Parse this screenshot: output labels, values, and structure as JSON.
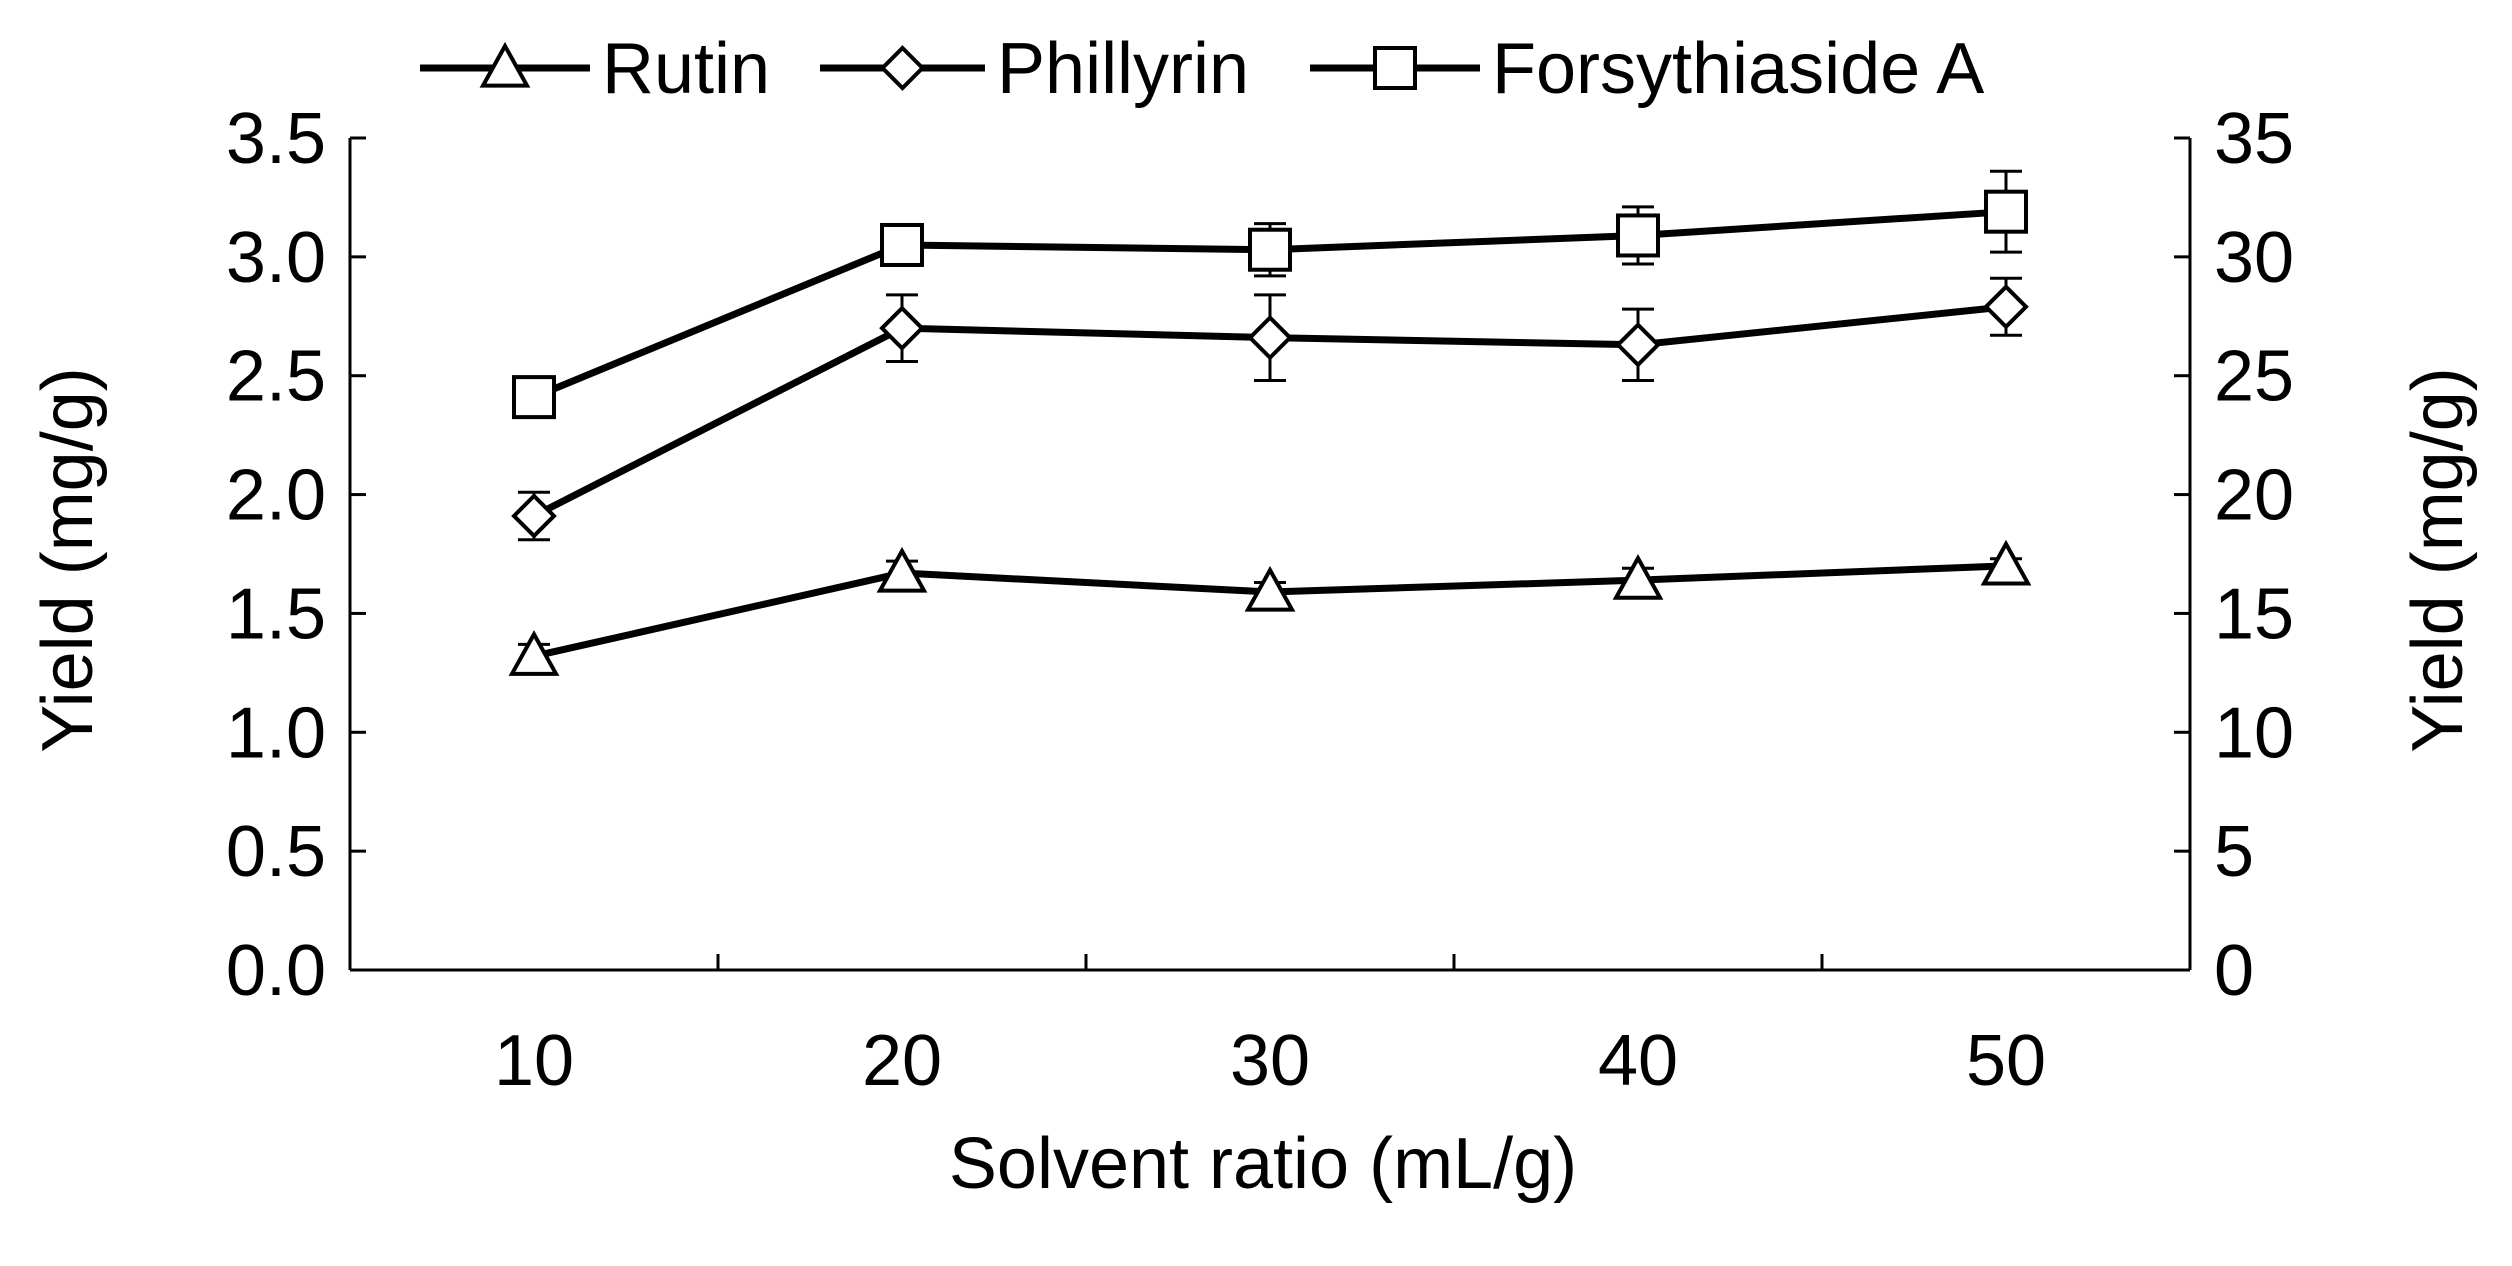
{
  "chart_data": {
    "type": "line",
    "title": "",
    "xlabel": "Solvent ratio (mL/g)",
    "ylabel_left": "Yield (mg/g)",
    "ylabel_right": "Yield (mg/g)",
    "x": [
      10,
      20,
      30,
      40,
      50
    ],
    "x_tick_labels": [
      "10",
      "20",
      "30",
      "40",
      "50"
    ],
    "xlim": [
      5,
      55
    ],
    "ylim_left": [
      0,
      3.5
    ],
    "ylim_right": [
      0,
      35
    ],
    "y_left_ticks": [
      "0.0",
      "0.5",
      "1.0",
      "1.5",
      "2.0",
      "2.5",
      "3.0",
      "3.5"
    ],
    "y_right_ticks": [
      "0",
      "5",
      "10",
      "15",
      "20",
      "25",
      "30",
      "35"
    ],
    "grid": false,
    "legend_position": "top",
    "series": [
      {
        "name": "Rutin",
        "axis": "left",
        "marker": "triangle",
        "values": [
          1.32,
          1.67,
          1.59,
          1.64,
          1.7
        ],
        "errors": [
          0.05,
          0.05,
          0.04,
          0.05,
          0.03
        ]
      },
      {
        "name": "Phillyrin",
        "axis": "right",
        "marker": "diamond",
        "values": [
          19.1,
          27.0,
          26.6,
          26.3,
          27.9
        ],
        "errors": [
          1.0,
          1.4,
          1.8,
          1.5,
          1.2
        ]
      },
      {
        "name": "Forsythiaside A",
        "axis": "right",
        "marker": "square",
        "values": [
          24.1,
          30.5,
          30.3,
          30.9,
          31.9
        ],
        "errors": [
          0.8,
          0.6,
          1.1,
          1.2,
          1.7
        ]
      }
    ]
  }
}
